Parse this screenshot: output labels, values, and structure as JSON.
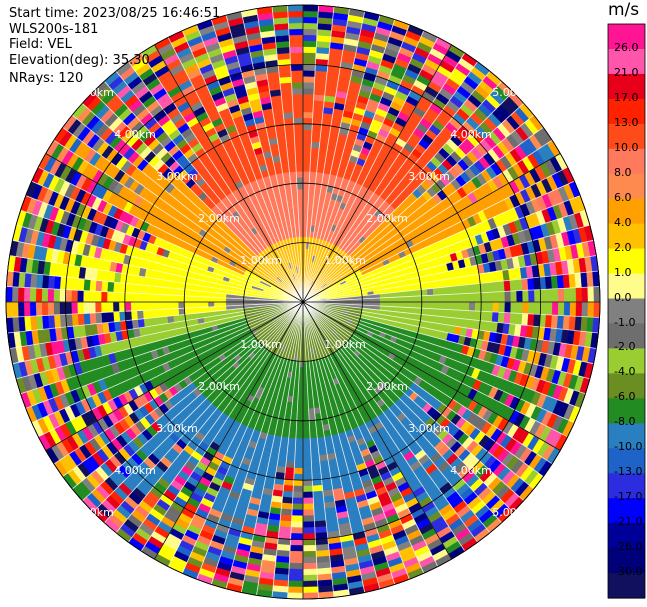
{
  "header": {
    "start_time": "Start time: 2023/08/25 16:46:51",
    "device": "WLS200s-181",
    "field": "Field: VEL",
    "elevation": "Elevation(deg): 35.30",
    "nrays": "NRays: 120"
  },
  "chart_data": {
    "type": "heatmap",
    "subtype": "polar-ppi",
    "n_rays": 120,
    "range_rings_km": [
      1,
      2,
      3,
      4,
      5
    ],
    "ring_labels": [
      "1.00km",
      "2.00km",
      "3.00km",
      "4.00km",
      "5.00km"
    ],
    "colorbar": {
      "unit": "m/s",
      "ticks": [
        "26.0",
        "21.0",
        "17.0",
        "13.0",
        "10.0",
        "8.0",
        "6.0",
        "4.0",
        "2.0",
        "1.0",
        "0.0",
        "-1.0",
        "-2.0",
        "-4.0",
        "-6.0",
        "-8.0",
        "-10.0",
        "-13.0",
        "-17.0",
        "-21.0",
        "-26.0",
        "-30.0"
      ],
      "colors": [
        "#ff1493",
        "#ff55aa",
        "#e8001a",
        "#ff2200",
        "#ff4b1a",
        "#ff7a5c",
        "#ff8a50",
        "#ffa000",
        "#ffc000",
        "#ffff00",
        "#fffc8c",
        "#808080",
        "#6e6e6e",
        "#9acd32",
        "#6b8e23",
        "#228b22",
        "#2a7fc0",
        "#1e63c8",
        "#2d2de0",
        "#0000ff",
        "#000099",
        "#00007a",
        "#10105e"
      ]
    },
    "colors": {
      "ring": "#000000",
      "spoke": "#ffffff"
    }
  }
}
